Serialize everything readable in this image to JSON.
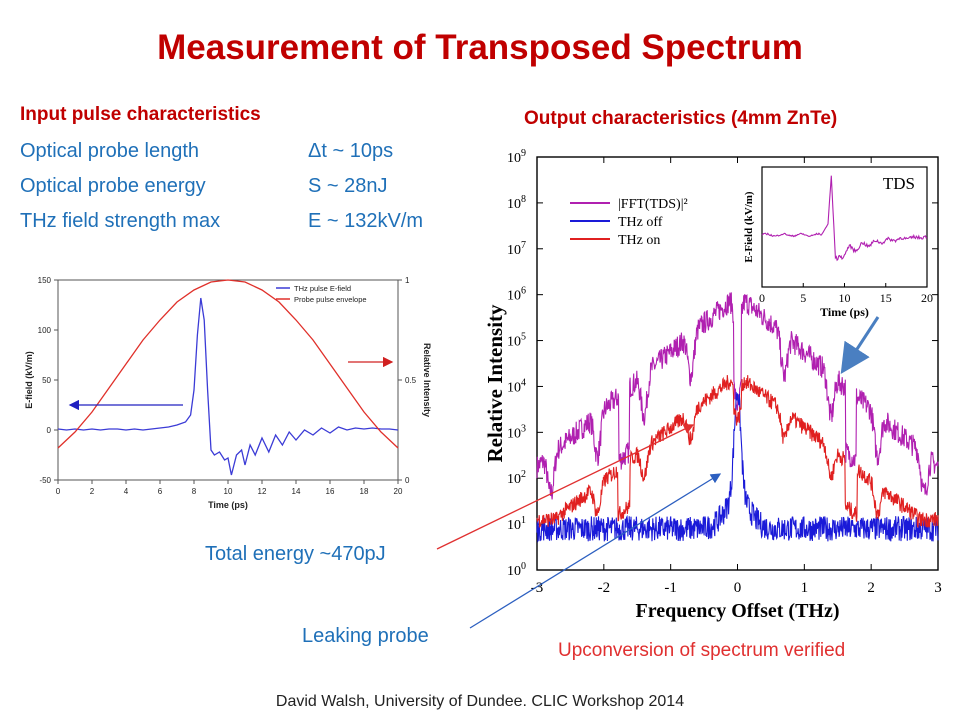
{
  "slide": {
    "title": "Measurement of Transposed Spectrum",
    "input_heading": "Input pulse characteristics",
    "params": [
      {
        "label": "Optical probe length",
        "value": "Δt ~ 10ps"
      },
      {
        "label": "Optical probe energy",
        "value": "S   ~ 28nJ"
      },
      {
        "label": "THz field strength max",
        "value": "E   ~ 132kV/m"
      }
    ],
    "output_heading": "Output characteristics (4mm ZnTe)",
    "total_energy": "Total energy ~470pJ",
    "leaking_probe": "Leaking probe",
    "verified": "Upconversion of spectrum verified",
    "footer": "David Walsh, University of Dundee. CLIC Workshop 2014"
  },
  "chart_data": [
    {
      "type": "line",
      "xlabel": "Time (ps)",
      "ylabel": "E-field (kV/m)",
      "y2label": "Relative Intensity",
      "xlim": [
        0,
        20
      ],
      "ylim": [
        -50,
        150
      ],
      "y2lim": [
        0,
        1
      ],
      "xticks": [
        "0",
        "2",
        "4",
        "6",
        "8",
        "10",
        "12",
        "14",
        "16",
        "18",
        "20"
      ],
      "yticks": [
        "-50",
        "0",
        "50",
        "100",
        "150"
      ],
      "y2ticks": [
        "0",
        "0.5",
        "1"
      ],
      "legend": [
        "THz pulse E-field",
        "Probe pulse envelope"
      ],
      "legend_position": "top-right",
      "series": [
        {
          "name": "THz pulse E-field",
          "color": "#3b3bd6",
          "axis": "left",
          "x": [
            0,
            0.5,
            1,
            1.5,
            2,
            2.5,
            3,
            3.5,
            4,
            4.5,
            5,
            5.5,
            6,
            6.5,
            7,
            7.5,
            7.8,
            8.0,
            8.2,
            8.4,
            8.6,
            8.8,
            9.0,
            9.2,
            9.5,
            9.8,
            10.0,
            10.2,
            10.5,
            10.8,
            11.0,
            11.3,
            11.6,
            12.0,
            12.4,
            12.8,
            13.2,
            13.6,
            14.0,
            14.5,
            15,
            15.5,
            16,
            16.5,
            17,
            17.5,
            18,
            18.5,
            19,
            19.5,
            20
          ],
          "y": [
            1,
            0,
            1,
            0,
            1,
            0,
            1,
            1,
            0,
            1,
            0,
            1,
            2,
            3,
            5,
            8,
            15,
            40,
            95,
            132,
            110,
            40,
            -20,
            -25,
            -22,
            -30,
            -28,
            -45,
            -25,
            -20,
            -35,
            -15,
            -25,
            -8,
            -22,
            -5,
            -15,
            -2,
            -10,
            0,
            -5,
            2,
            -3,
            3,
            0,
            2,
            1,
            2,
            1,
            1,
            0
          ]
        },
        {
          "name": "Probe pulse envelope",
          "color": "#e0302a",
          "axis": "right",
          "x": [
            0,
            1,
            2,
            3,
            4,
            5,
            6,
            7,
            8,
            9,
            10,
            11,
            12,
            13,
            14,
            15,
            16,
            17,
            18,
            19,
            20
          ],
          "y": [
            0.16,
            0.24,
            0.34,
            0.46,
            0.58,
            0.7,
            0.8,
            0.89,
            0.95,
            0.99,
            1.0,
            0.99,
            0.95,
            0.89,
            0.8,
            0.7,
            0.58,
            0.46,
            0.34,
            0.24,
            0.16
          ]
        }
      ]
    },
    {
      "type": "line",
      "scale": "log",
      "xlabel": "Frequency Offset (THz)",
      "ylabel": "Relative Intensity",
      "xlim": [
        -3,
        3
      ],
      "ylim": [
        1,
        1000000000
      ],
      "xticks": [
        "-3",
        "-2",
        "-1",
        "0",
        "1",
        "2",
        "3"
      ],
      "yticks": [
        "10^0",
        "10^1",
        "10^2",
        "10^3",
        "10^4",
        "10^5",
        "10^6",
        "10^7",
        "10^8",
        "10^9"
      ],
      "legend_position": "top-left",
      "series": [
        {
          "name": "|FFT(TDS)|²",
          "color": "#b020b0"
        },
        {
          "name": "THz off",
          "color": "#1a1ad8"
        },
        {
          "name": "THz on",
          "color": "#e02020"
        }
      ]
    },
    {
      "type": "line",
      "inset": true,
      "title": "TDS",
      "xlabel": "Time (ps)",
      "ylabel": "E-Field (kV/m)",
      "xlim": [
        0,
        20
      ],
      "xticks": [
        "0",
        "5",
        "10",
        "15",
        "20"
      ],
      "series": [
        {
          "name": "TDS",
          "color": "#b020b0"
        }
      ]
    }
  ]
}
